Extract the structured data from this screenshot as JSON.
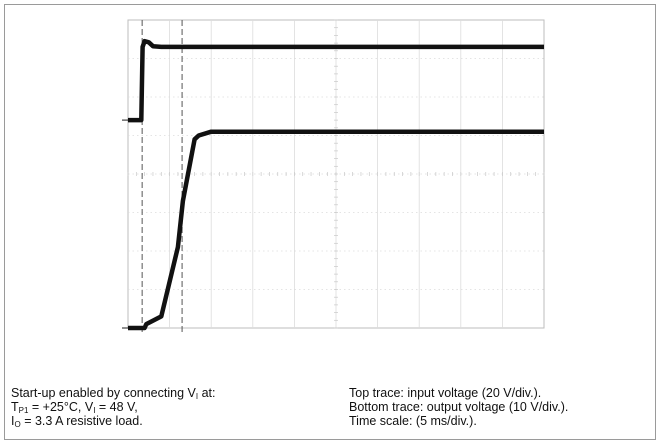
{
  "chart_data": {
    "type": "line",
    "title": "",
    "xlabel": "",
    "ylabel": "",
    "grid": true,
    "x_divisions": 10,
    "y_divisions": 8,
    "x_units": "ms",
    "time_per_div_ms": 5,
    "x_range_ms": [
      0,
      50
    ],
    "cursors_x_ms": [
      1.7,
      6.5
    ],
    "series": [
      {
        "x": [
          0,
          1.6,
          1.75,
          2.0,
          2.5,
          3.0,
          4.0,
          6.0,
          10.0,
          20.0,
          30.0,
          40.0,
          50.0
        ],
        "y_div": [
          5.4,
          5.4,
          7.3,
          7.45,
          7.42,
          7.32,
          7.3,
          7.3,
          7.3,
          7.3,
          7.3,
          7.3,
          7.3
        ],
        "volts_per_div": 20
      },
      {
        "x": [
          0,
          2.0,
          2.2,
          4.0,
          6.0,
          6.6,
          8.0,
          8.5,
          10.0,
          20.0,
          30.0,
          40.0,
          50.0
        ],
        "y_div": [
          0.0,
          0.0,
          0.1,
          0.3,
          2.1,
          3.3,
          4.9,
          5.0,
          5.1,
          5.1,
          5.1,
          5.1,
          5.1
        ],
        "volts_per_div": 10
      }
    ]
  },
  "caption_left": {
    "line1_text": "Start-up enabled by connecting V",
    "line1_sub": "I",
    "line1_tail": " at:",
    "line2_a": "T",
    "line2_a_sub": "P1",
    "line2_b": " = +25°C, V",
    "line2_b_sub": "I",
    "line2_c": " = 48 V,",
    "line3_a": "I",
    "line3_a_sub": "O",
    "line3_b": " = 3.3 A resistive load."
  },
  "caption_right": {
    "line1": "Top trace: input voltage (20 V/div.).",
    "line2": "Bottom trace: output voltage (10 V/div.).",
    "line3": "Time scale: (5 ms/div.)."
  }
}
